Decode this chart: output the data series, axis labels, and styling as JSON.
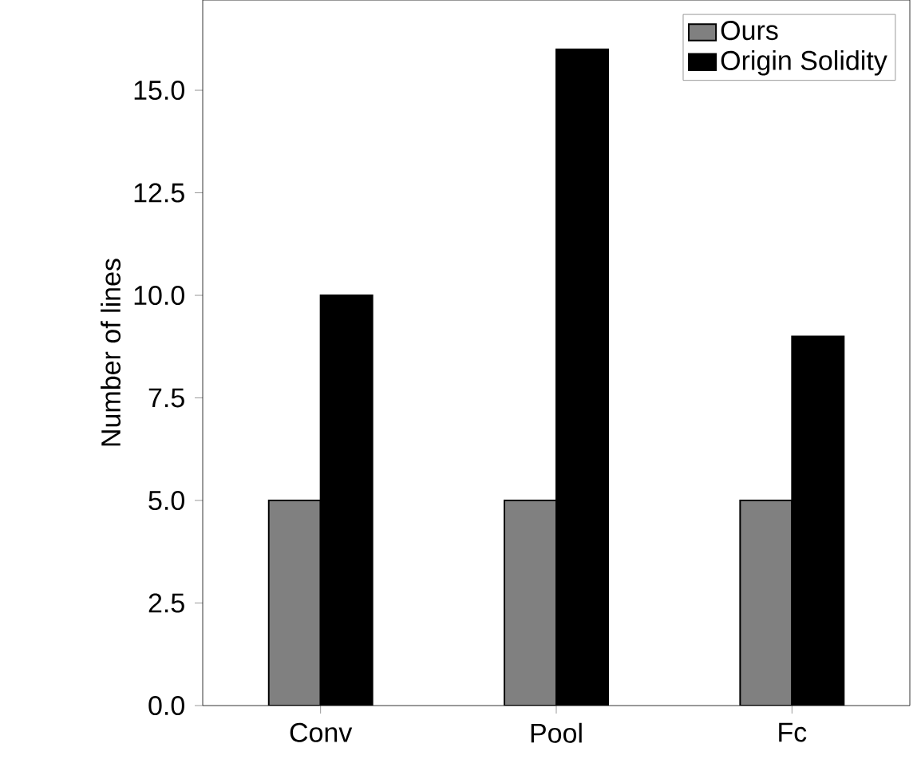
{
  "chart_data": {
    "type": "bar",
    "ylabel": "Number of lines",
    "categories": [
      "Conv",
      "Pool",
      "Fc"
    ],
    "series": [
      {
        "name": "Ours",
        "color": "#808080",
        "values": [
          5,
          5,
          5
        ]
      },
      {
        "name": "Origin Solidity",
        "color": "#000000",
        "values": [
          10,
          16,
          9
        ]
      }
    ],
    "ylim": [
      0,
      17.2
    ],
    "yticks": [
      {
        "value": 0,
        "label": "0.0"
      },
      {
        "value": 2.5,
        "label": "2.5"
      },
      {
        "value": 5,
        "label": "5.0"
      },
      {
        "value": 7.5,
        "label": "7.5"
      },
      {
        "value": 10,
        "label": "10.0"
      },
      {
        "value": 12.5,
        "label": "12.5"
      },
      {
        "value": 15,
        "label": "15.0"
      }
    ],
    "legend": "top right"
  }
}
